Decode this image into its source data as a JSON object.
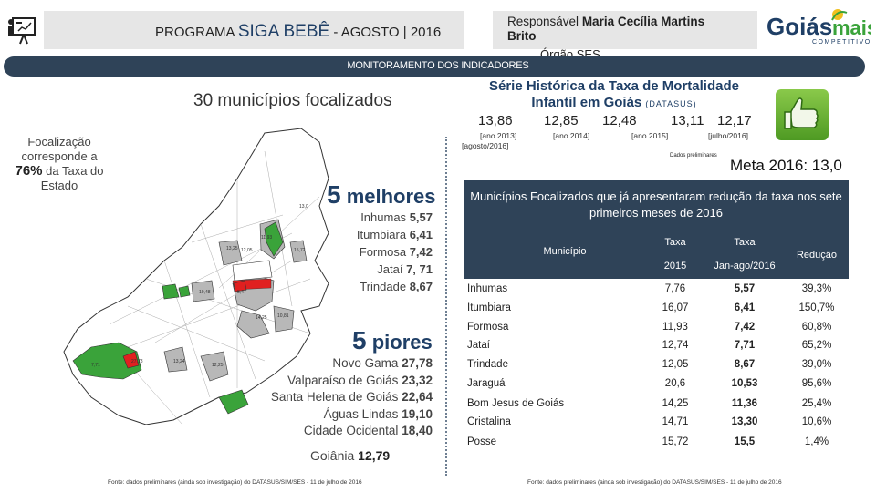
{
  "header": {
    "title_prefix": "PROGRAMA",
    "title_main": "SIGA BEBÊ",
    "title_suffix": "- AGOSTO | 2016",
    "responsavel_label": "Responsável",
    "responsavel_name": "Maria Cecília Martins Brito",
    "orgao": "Órgão SES",
    "brand_logo_text": "Goiásmais",
    "brand_logo_sub": "COMPETITIVO"
  },
  "monitoring_bar": "MONITORAMENTO DOS INDICADORES",
  "left": {
    "municipios_focalizados": "30 municípios focalizados",
    "focalizacao_line1": "Focalização corresponde a",
    "focalizacao_pct": "76%",
    "focalizacao_line2": "da Taxa do Estado",
    "melhores_n": "5",
    "melhores_label": "melhores",
    "melhores": [
      {
        "name": "Inhumas",
        "value": "5,57"
      },
      {
        "name": "Itumbiara",
        "value": "6,41"
      },
      {
        "name": "Formosa",
        "value": "7,42"
      },
      {
        "name": "Jataí",
        "value": "7, 71"
      },
      {
        "name": "Trindade",
        "value": "8,67"
      }
    ],
    "piores_n": "5",
    "piores_label": "piores",
    "piores": [
      {
        "name": "Novo Gama",
        "value": "27,78"
      },
      {
        "name": "Valparaíso de Goiás",
        "value": "23,32"
      },
      {
        "name": "Santa Helena de Goiás",
        "value": "22,64"
      },
      {
        "name": "Águas Lindas",
        "value": "19,10"
      },
      {
        "name": "Cidade Ocidental",
        "value": "18,40"
      }
    ],
    "goiania_label": "Goiânia",
    "goiania_value": "12,79",
    "fonte": "Fonte: dados preliminares (ainda sob investigação) do DATASUS/SIM/SES - 11 de julho de 2016"
  },
  "map_labels": [
    "13,0",
    "12,05",
    "11,93",
    "15,72",
    "13,25",
    "19,48",
    "27,78",
    "14,25",
    "12,25",
    "8,47",
    "7,71",
    "13,24",
    "10,81"
  ],
  "right": {
    "serie_title_line1": "Série Histórica da Taxa de Mortalidade",
    "serie_title_line2": "Infantil em Goiás",
    "serie_source": "(DATASUS)",
    "serie_values": [
      "13,86",
      "12,85",
      "12,48",
      "13,11",
      "12,17"
    ],
    "serie_labels": [
      "[ano 2013]",
      "[ano 2014]",
      "[ano 2015]",
      "[julho/2016]",
      "[agosto/2016]"
    ],
    "dados_preliminares": "Dados preliminares",
    "meta": "Meta 2016: 13,0",
    "table_title": "Municípios Focalizados que já apresentaram redução da taxa nos sete primeiros meses de 2016",
    "table_headers": {
      "municipio": "Município",
      "taxa1": "Taxa",
      "taxa1_sub": "2015",
      "taxa2": "Taxa",
      "taxa2_sub": "Jan-ago/2016",
      "reducao": "Redução"
    },
    "rows": [
      {
        "municipio": "Inhumas",
        "taxa2015": "7,76",
        "taxa2016": "5,57",
        "reducao": "39,3%"
      },
      {
        "municipio": "Itumbiara",
        "taxa2015": "16,07",
        "taxa2016": "6,41",
        "reducao": "150,7%"
      },
      {
        "municipio": "Formosa",
        "taxa2015": "11,93",
        "taxa2016": "7,42",
        "reducao": "60,8%"
      },
      {
        "municipio": "Jataí",
        "taxa2015": "12,74",
        "taxa2016": "7,71",
        "reducao": "65,2%"
      },
      {
        "municipio": "Trindade",
        "taxa2015": "12,05",
        "taxa2016": "8,67",
        "reducao": "39,0%"
      },
      {
        "municipio": "Jaraguá",
        "taxa2015": "20,6",
        "taxa2016": "10,53",
        "reducao": "95,6%"
      },
      {
        "municipio": "Bom Jesus de Goiás",
        "taxa2015": "14,25",
        "taxa2016": "11,36",
        "reducao": "25,4%"
      },
      {
        "municipio": "Cristalina",
        "taxa2015": "14,71",
        "taxa2016": "13,30",
        "reducao": "10,6%"
      },
      {
        "municipio": "Posse",
        "taxa2015": "15,72",
        "taxa2016": "15,5",
        "reducao": "1,4%"
      }
    ],
    "fonte": "Fonte: dados preliminares (ainda sob investigação) do DATASUS/SIM/SES - 11 de julho de 2016"
  },
  "colors": {
    "navy": "#2f4358",
    "title_blue": "#1f3f66",
    "map_green": "#3aa33a",
    "map_red": "#e02020",
    "map_gray": "#b8b8b8"
  }
}
